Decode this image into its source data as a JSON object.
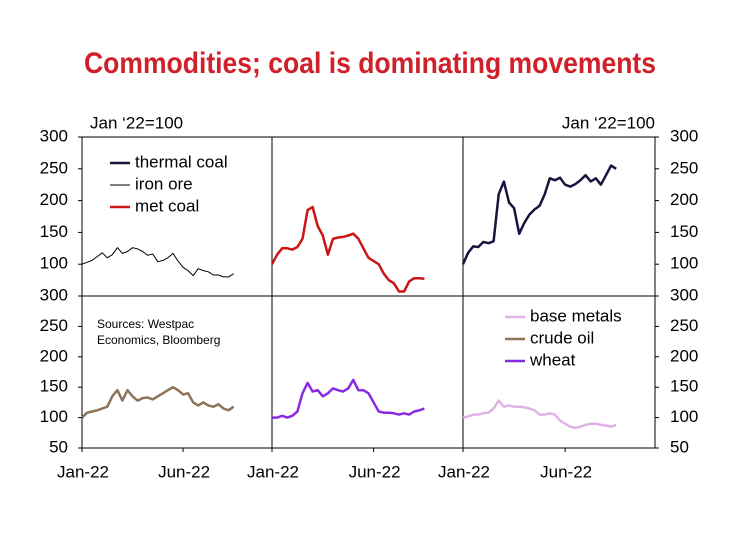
{
  "title": "Commodities; coal is dominating movements",
  "chart_data": [
    {
      "type": "line",
      "y_label": "Jan ‘22=100",
      "x": [
        0,
        0.25,
        0.5,
        0.75,
        1,
        1.25,
        1.5,
        1.75,
        2,
        2.25,
        2.5,
        2.75,
        3,
        3.25,
        3.5,
        3.75,
        4,
        4.25,
        4.5,
        4.75,
        5,
        5.25,
        5.5,
        5.75,
        6,
        6.25,
        6.5,
        6.75,
        7,
        7.25,
        7.5
      ],
      "xlim": [
        0,
        9.4
      ],
      "ylim": [
        50,
        300
      ],
      "yticks": [
        100,
        150,
        200,
        250,
        300
      ],
      "series": [
        {
          "name": "thermal coal",
          "color": "#15153f",
          "values": [
            100,
            118,
            128,
            127,
            135,
            133,
            136,
            210,
            230,
            197,
            188,
            148,
            165,
            178,
            186,
            192,
            210,
            235,
            232,
            236,
            225,
            222,
            226,
            232,
            240,
            230,
            235,
            225,
            240,
            255,
            250
          ]
        },
        {
          "name": "iron ore",
          "color": "#000000",
          "values": [
            100,
            103,
            106,
            112,
            118,
            110,
            115,
            126,
            117,
            120,
            126,
            124,
            120,
            114,
            116,
            104,
            106,
            110,
            117,
            105,
            95,
            90,
            82,
            93,
            90,
            88,
            83,
            83,
            80,
            80,
            85
          ]
        },
        {
          "name": "met coal",
          "color": "#cc1414",
          "values": [
            100,
            115,
            125,
            125,
            123,
            127,
            140,
            185,
            190,
            160,
            145,
            115,
            140,
            142,
            143,
            145,
            148,
            140,
            125,
            110,
            105,
            100,
            85,
            75,
            70,
            57,
            57,
            73,
            78,
            78,
            77
          ]
        }
      ]
    },
    {
      "type": "line",
      "annotation": "Sources: Westpac\nEconomics, Bloomberg",
      "x": [
        0,
        0.25,
        0.5,
        0.75,
        1,
        1.25,
        1.5,
        1.75,
        2,
        2.25,
        2.5,
        2.75,
        3,
        3.25,
        3.5,
        3.75,
        4,
        4.25,
        4.5,
        4.75,
        5,
        5.25,
        5.5,
        5.75,
        6,
        6.25,
        6.5,
        6.75,
        7,
        7.25,
        7.5
      ],
      "xlim": [
        0,
        9.4
      ],
      "ylim": [
        50,
        300
      ],
      "yticks": [
        50,
        100,
        150,
        200,
        250,
        300
      ],
      "xticks": [
        {
          "value": 0,
          "label": "Jan-22"
        },
        {
          "value": 5,
          "label": "Jun-22"
        }
      ],
      "series": [
        {
          "name": "base metals",
          "color": "#dfb3e6",
          "values": [
            100,
            102,
            105,
            105,
            107,
            108,
            115,
            128,
            118,
            120,
            118,
            118,
            117,
            115,
            112,
            105,
            105,
            107,
            105,
            95,
            90,
            85,
            83,
            85,
            88,
            90,
            90,
            88,
            87,
            85,
            88
          ]
        },
        {
          "name": "crude oil",
          "color": "#8b7457",
          "values": [
            100,
            108,
            110,
            112,
            115,
            118,
            135,
            145,
            128,
            145,
            135,
            128,
            132,
            133,
            130,
            135,
            140,
            145,
            150,
            145,
            138,
            140,
            125,
            120,
            125,
            120,
            118,
            122,
            115,
            112,
            118
          ]
        },
        {
          "name": "wheat",
          "color": "#8a2be2",
          "values": [
            100,
            100,
            103,
            100,
            103,
            110,
            140,
            157,
            143,
            145,
            135,
            140,
            148,
            145,
            143,
            148,
            162,
            145,
            145,
            140,
            125,
            110,
            108,
            108,
            107,
            105,
            107,
            105,
            110,
            112,
            115
          ]
        }
      ]
    }
  ]
}
